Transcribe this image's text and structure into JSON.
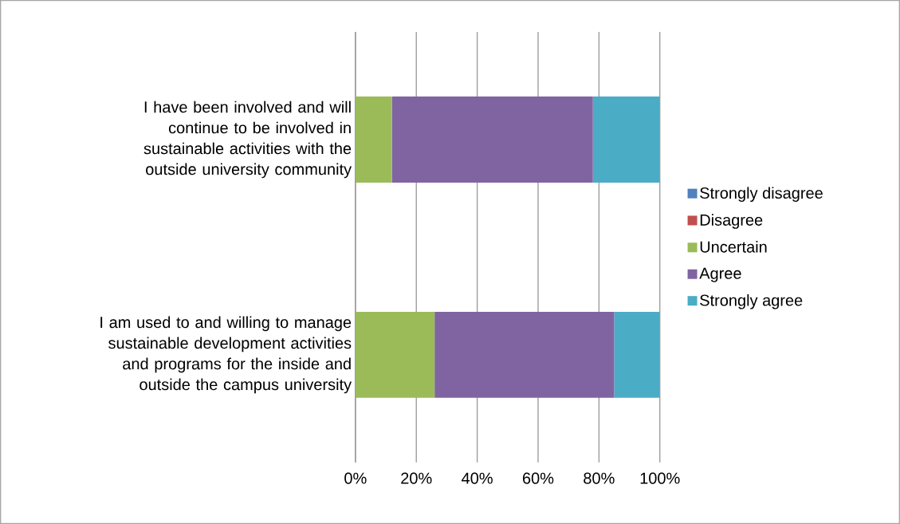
{
  "chart_data": {
    "type": "bar",
    "orientation": "horizontal",
    "stacked": true,
    "grid": "x",
    "legend": "right",
    "categories": [
      "I have been involved and will continue to be involved in sustainable activities with the outside university community",
      "I am used to and willing to manage sustainable development activities and programs for the inside and outside the campus university"
    ],
    "series": [
      {
        "name": "Strongly disagree",
        "color": "#4f81bd",
        "values": [
          0,
          0
        ]
      },
      {
        "name": "Disagree",
        "color": "#c0504d",
        "values": [
          0,
          0
        ]
      },
      {
        "name": "Uncertain",
        "color": "#9bbb59",
        "values": [
          12,
          26
        ]
      },
      {
        "name": "Agree",
        "color": "#8064a2",
        "values": [
          66,
          59
        ]
      },
      {
        "name": "Strongly agree",
        "color": "#4bacc6",
        "values": [
          22,
          15
        ]
      }
    ],
    "xlim": [
      0,
      100
    ],
    "xticks": [
      {
        "value": 0,
        "label": "0%"
      },
      {
        "value": 20,
        "label": "20%"
      },
      {
        "value": 40,
        "label": "40%"
      },
      {
        "value": 60,
        "label": "60%"
      },
      {
        "value": 80,
        "label": "80%"
      },
      {
        "value": 100,
        "label": "100%"
      }
    ]
  }
}
